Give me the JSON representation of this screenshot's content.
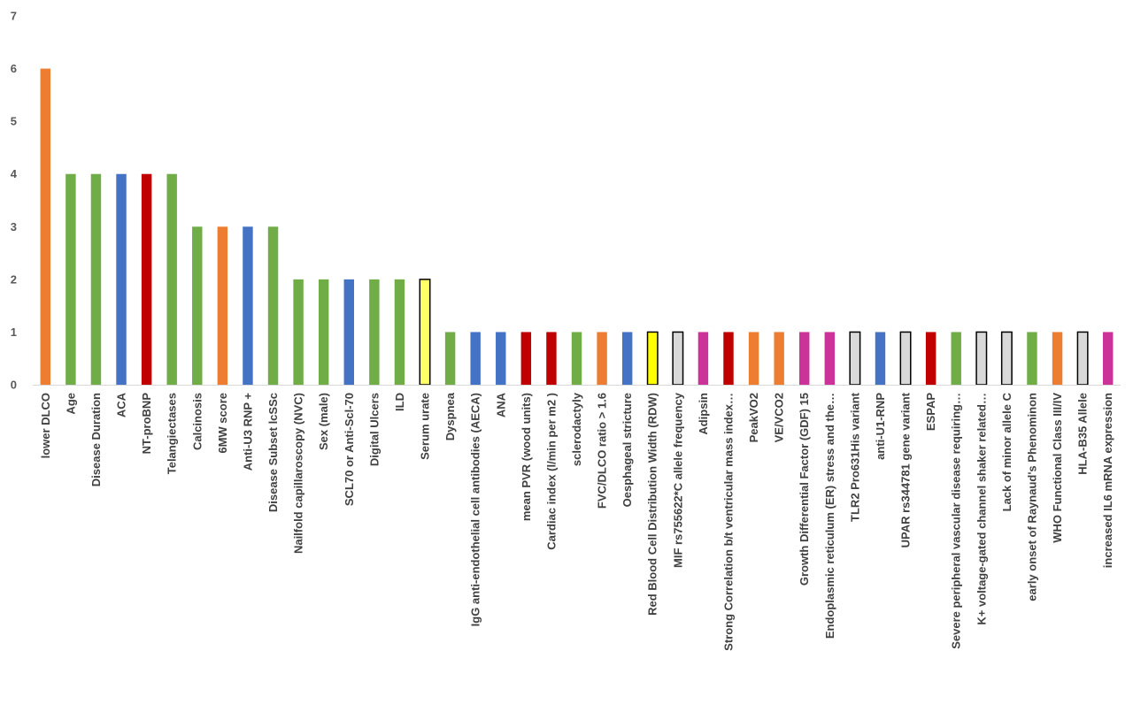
{
  "chart_data": {
    "type": "bar",
    "title": "",
    "xlabel": "",
    "ylabel": "",
    "ylim": [
      0,
      7
    ],
    "yticks": [
      0,
      1,
      2,
      3,
      4,
      5,
      6,
      7
    ],
    "grid": false,
    "legend": "none",
    "categories": [
      "lower DLCO",
      "Age",
      "Disease Duration",
      "ACA",
      "NT-proBNP",
      "Telangiectases",
      "Calcinosis",
      "6MW score",
      "Anti-U3 RNP +",
      "Disease Subset lcSSc",
      "Nailfold capillaroscopy (NVC)",
      "Sex (male)",
      "SCL70 or Anti-Scl-70",
      "Digital Ulcers",
      "ILD",
      "Serum urate",
      "Dyspnea",
      "IgG anti-endothelial cell antibodies (AECA)",
      "ANA",
      "mean PVR (wood units)",
      "Cardiac index (l/min per m2 )",
      "sclerodactyly",
      "FVC/DLCO ratio > 1.6",
      "Oesphageal stricture",
      "Red Blood Cell Distribution Width (RDW)",
      "MIF rs755622*C allele frequency",
      "Adipsin",
      "Strong Correlation b/t ventricular mass index…",
      "PeakVO2",
      "VE/VCO2",
      "Growth Differential Factor (GDF) 15",
      "Endoplasmic reticulum (ER) stress and the…",
      "TLR2 Pro631His variant",
      "anti-U1-RNP",
      "UPAR rs344781 gene variant",
      "ESPAP",
      "Severe peripheral vascular disease requiring…",
      "K+ voltage-gated channel shaker related…",
      "Lack of minor allele C",
      "early onset of Raynaud's Phenominon",
      "WHO Functional Class III/IV",
      "HLA-B35 Allele",
      "increased IL6 mRNA expression"
    ],
    "values": [
      6,
      4,
      4,
      4,
      4,
      4,
      3,
      3,
      3,
      3,
      2,
      2,
      2,
      2,
      2,
      2,
      1,
      1,
      1,
      1,
      1,
      1,
      1,
      1,
      1,
      1,
      1,
      1,
      1,
      1,
      1,
      1,
      1,
      1,
      1,
      1,
      1,
      1,
      1,
      1,
      1,
      1,
      1
    ],
    "bar_colors": [
      "#ED7D31",
      "#70AD47",
      "#70AD47",
      "#4472C4",
      "#C00000",
      "#70AD47",
      "#70AD47",
      "#ED7D31",
      "#4472C4",
      "#70AD47",
      "#70AD47",
      "#70AD47",
      "#4472C4",
      "#70AD47",
      "#70AD47",
      "#FFFF66",
      "#70AD47",
      "#4472C4",
      "#4472C4",
      "#C00000",
      "#C00000",
      "#70AD47",
      "#ED7D31",
      "#4472C4",
      "#FFFF00",
      "#D9D9D9",
      "#CC3399",
      "#C00000",
      "#ED7D31",
      "#ED7D31",
      "#CC3399",
      "#CC3399",
      "#D9D9D9",
      "#4472C4",
      "#D9D9D9",
      "#C00000",
      "#70AD47",
      "#D9D9D9",
      "#D9D9D9",
      "#70AD47",
      "#ED7D31",
      "#D9D9D9",
      "#CC3399"
    ],
    "outlined_bars": [
      15,
      24,
      25,
      32,
      34,
      37,
      38,
      41
    ]
  }
}
